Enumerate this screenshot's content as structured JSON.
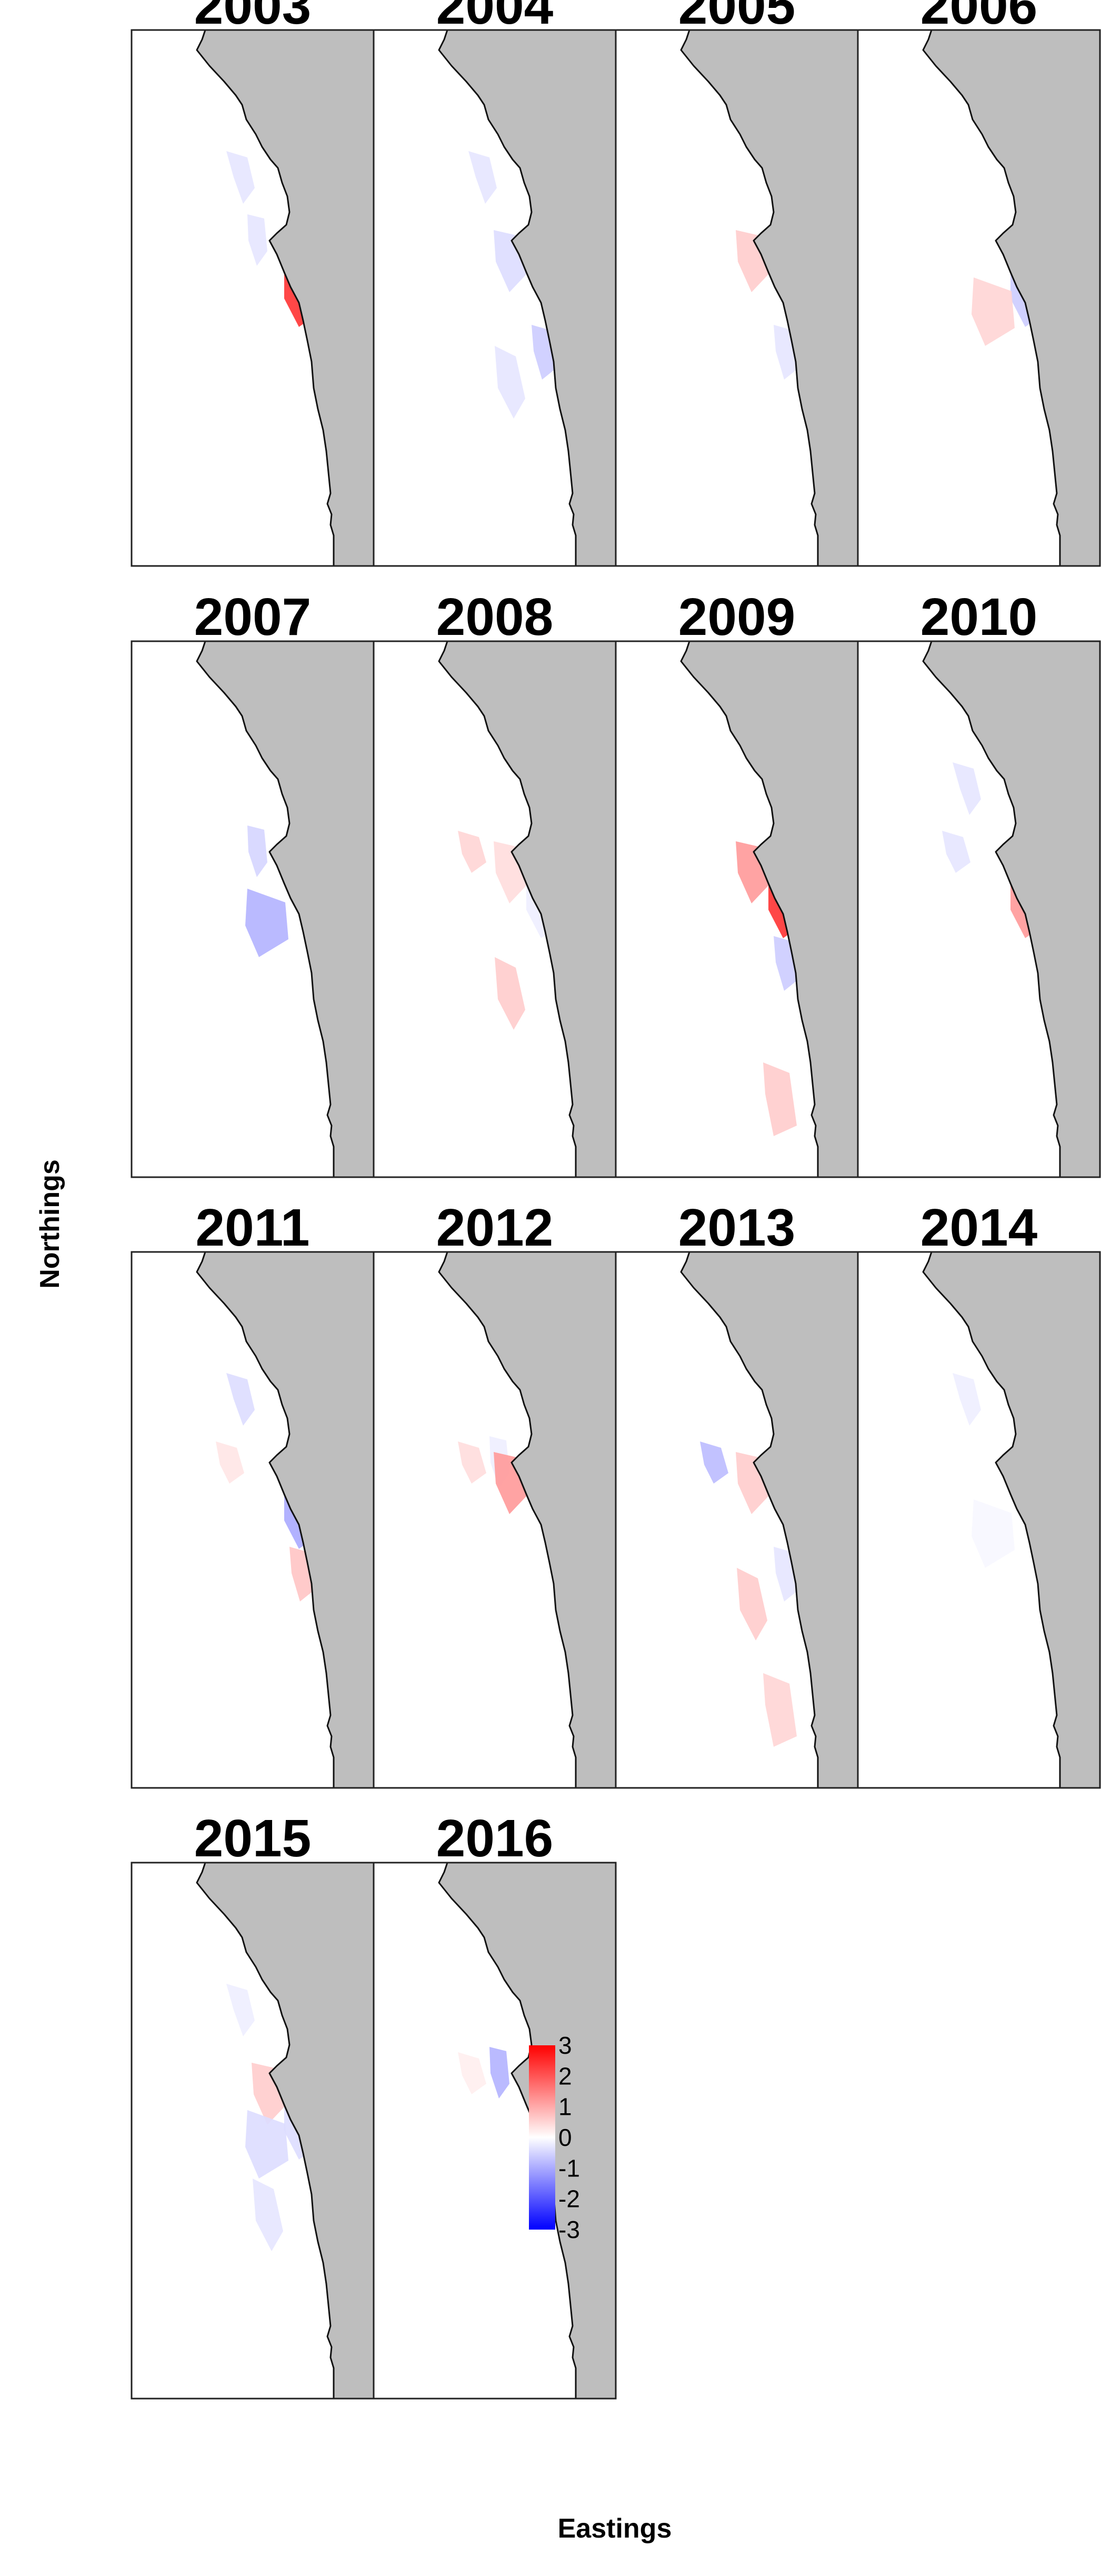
{
  "figure": {
    "xlabel": "Eastings",
    "ylabel": "Northings",
    "land_color": "#bebebe",
    "ocean_color": "#ffffff"
  },
  "legend": {
    "ticks": [
      "3",
      "2",
      "1",
      "0",
      "-1",
      "-2",
      "-3"
    ],
    "colors": {
      "high": "#ff0000",
      "mid": "#ffffff",
      "low": "#0000ff"
    },
    "range": [
      -3,
      3
    ]
  },
  "panels": [
    {
      "year": "2003",
      "anomalies": [
        {
          "zone": "z1",
          "value": -0.3
        },
        {
          "zone": "z2",
          "value": -0.3
        },
        {
          "zone": "z5",
          "value": 2.4
        },
        {
          "zone": "z10",
          "value": -0.6
        },
        {
          "zone": "z11",
          "value": -0.4
        }
      ]
    },
    {
      "year": "2004",
      "anomalies": [
        {
          "zone": "z1",
          "value": -0.3
        },
        {
          "zone": "z4",
          "value": -0.4
        },
        {
          "zone": "z7",
          "value": -0.3
        },
        {
          "zone": "z8",
          "value": -0.6
        },
        {
          "zone": "z9",
          "value": 1.2
        },
        {
          "zone": "z10",
          "value": -0.3
        },
        {
          "zone": "z11",
          "value": 1.0
        }
      ]
    },
    {
      "year": "2005",
      "anomalies": [
        {
          "zone": "z4",
          "value": 0.6
        },
        {
          "zone": "z8",
          "value": -0.3
        },
        {
          "zone": "z10",
          "value": 1.4
        },
        {
          "zone": "z11",
          "value": -0.7
        }
      ]
    },
    {
      "year": "2006",
      "anomalies": [
        {
          "zone": "z5",
          "value": -0.6
        },
        {
          "zone": "z6",
          "value": 0.5
        },
        {
          "zone": "z9",
          "value": -0.4
        },
        {
          "zone": "z10",
          "value": 1.0
        }
      ]
    },
    {
      "year": "2007",
      "anomalies": [
        {
          "zone": "z2",
          "value": -0.5
        },
        {
          "zone": "z6",
          "value": -0.9
        },
        {
          "zone": "z9",
          "value": -0.4
        },
        {
          "zone": "z10",
          "value": 1.6
        },
        {
          "zone": "z11",
          "value": 2.0
        }
      ]
    },
    {
      "year": "2008",
      "anomalies": [
        {
          "zone": "z3",
          "value": 0.5
        },
        {
          "zone": "z4",
          "value": 0.4
        },
        {
          "zone": "z5",
          "value": -0.2
        },
        {
          "zone": "z7",
          "value": 0.6
        },
        {
          "zone": "z9",
          "value": -0.3
        }
      ]
    },
    {
      "year": "2009",
      "anomalies": [
        {
          "zone": "z4",
          "value": 1.2
        },
        {
          "zone": "z5",
          "value": 2.4
        },
        {
          "zone": "z8",
          "value": -0.6
        },
        {
          "zone": "z9",
          "value": -0.6
        },
        {
          "zone": "z12",
          "value": 0.6
        }
      ]
    },
    {
      "year": "2010",
      "anomalies": [
        {
          "zone": "z1",
          "value": -0.3
        },
        {
          "zone": "z3",
          "value": -0.3
        },
        {
          "zone": "z5",
          "value": 1.2
        },
        {
          "zone": "z11",
          "value": 0.1
        }
      ]
    },
    {
      "year": "2011",
      "anomalies": [
        {
          "zone": "z1",
          "value": -0.4
        },
        {
          "zone": "z3",
          "value": 0.3
        },
        {
          "zone": "z5",
          "value": -1.0
        },
        {
          "zone": "z8",
          "value": 0.7
        },
        {
          "zone": "z9",
          "value": 0.4
        },
        {
          "zone": "z10",
          "value": -0.7
        },
        {
          "zone": "z11",
          "value": 0.3
        }
      ]
    },
    {
      "year": "2012",
      "anomalies": [
        {
          "zone": "z2",
          "value": -0.2
        },
        {
          "zone": "z3",
          "value": 0.4
        },
        {
          "zone": "z4",
          "value": 1.2
        },
        {
          "zone": "z9",
          "value": 0.6
        },
        {
          "zone": "z10",
          "value": -0.8
        },
        {
          "zone": "z11",
          "value": -0.4
        }
      ]
    },
    {
      "year": "2013",
      "anomalies": [
        {
          "zone": "z3",
          "value": -0.8
        },
        {
          "zone": "z4",
          "value": 0.6
        },
        {
          "zone": "z7",
          "value": 0.6
        },
        {
          "zone": "z8",
          "value": -0.3
        },
        {
          "zone": "z12",
          "value": 0.5
        }
      ]
    },
    {
      "year": "2014",
      "anomalies": [
        {
          "zone": "z1",
          "value": -0.2
        },
        {
          "zone": "z6",
          "value": -0.1
        },
        {
          "zone": "z10",
          "value": -0.2
        },
        {
          "zone": "z11",
          "value": 0.9
        }
      ]
    },
    {
      "year": "2015",
      "anomalies": [
        {
          "zone": "z1",
          "value": -0.2
        },
        {
          "zone": "z4",
          "value": 0.6
        },
        {
          "zone": "z5",
          "value": -0.4
        },
        {
          "zone": "z6",
          "value": -0.4
        },
        {
          "zone": "z7",
          "value": -0.3
        },
        {
          "zone": "z10",
          "value": 1.8
        },
        {
          "zone": "z11",
          "value": -0.6
        }
      ]
    },
    {
      "year": "2016",
      "anomalies": [
        {
          "zone": "z2",
          "value": -0.9
        },
        {
          "zone": "z3",
          "value": 0.2
        },
        {
          "zone": "z9",
          "value": 0.8
        },
        {
          "zone": "z11",
          "value": -0.2
        }
      ]
    }
  ]
}
